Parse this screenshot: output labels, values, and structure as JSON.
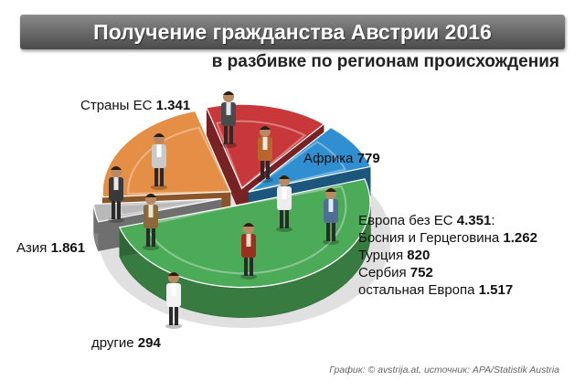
{
  "title": "Получение гражданства Австрии 2016",
  "subtitle": "в разбивке по регионам происхождения",
  "chart_data": {
    "type": "pie",
    "title": "Получение гражданства Австрии 2016",
    "subtitle": "в разбивке по регионам происхождения",
    "slices": [
      {
        "key": "eu",
        "label": "Страны ЕС",
        "value": 1341,
        "value_text": "1.341",
        "color": "#c8383a"
      },
      {
        "key": "africa",
        "label": "Африка",
        "value": 779,
        "value_text": "779",
        "color": "#2f8fd0"
      },
      {
        "key": "europe_non_eu",
        "label": "Европа без ЕС",
        "value": 4351,
        "value_text": "4.351",
        "color": "#4cab59"
      },
      {
        "key": "other",
        "label": "другие",
        "value": 294,
        "value_text": "294",
        "color": "#b9b9b9"
      },
      {
        "key": "asia",
        "label": "Азия",
        "value": 1861,
        "value_text": "1.861",
        "color": "#e58e45"
      }
    ],
    "breakdown": {
      "parent": "Европа без ЕС",
      "items": [
        {
          "label": "Босния и Герцеговина",
          "value": 1262,
          "value_text": "1.262"
        },
        {
          "label": "Турция",
          "value": 820,
          "value_text": "820"
        },
        {
          "label": "Сербия",
          "value": 752,
          "value_text": "752"
        },
        {
          "label": "остальная Европа",
          "value": 1517,
          "value_text": "1.517"
        }
      ]
    }
  },
  "credit": "График: © avstrija.at, источник: APA/Statistik Austria"
}
